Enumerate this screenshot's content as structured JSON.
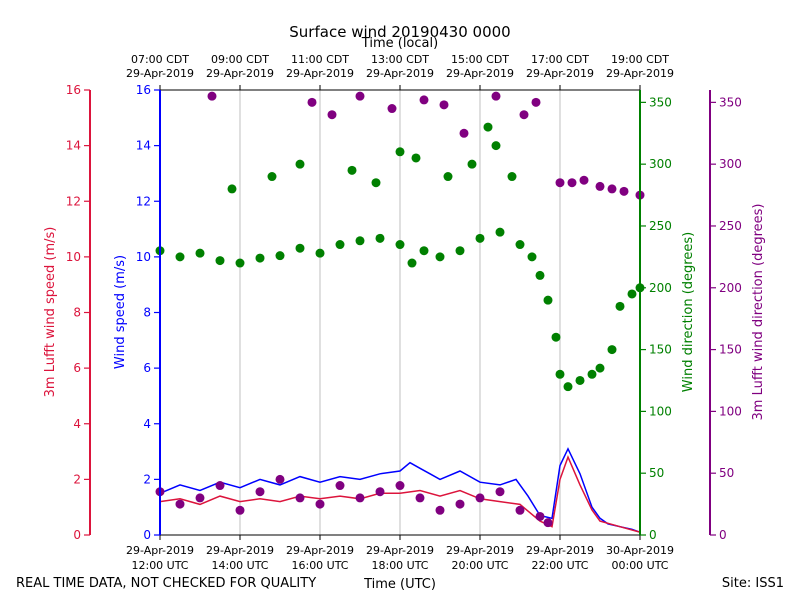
{
  "chart_data": {
    "type": "scatter",
    "title": "Surface wind 20190430 0000",
    "top_axis_label": "Time (local)",
    "xlabel": "Time (UTC)",
    "footer_left": "REAL TIME DATA, NOT CHECKED FOR QUALITY",
    "footer_right": "Site: ISS1",
    "x_range_hours_utc": [
      12.0,
      24.0
    ],
    "ticks_utc": [
      {
        "hour": 12,
        "date": "29-Apr-2019",
        "time": "12:00 UTC"
      },
      {
        "hour": 14,
        "date": "29-Apr-2019",
        "time": "14:00 UTC"
      },
      {
        "hour": 16,
        "date": "29-Apr-2019",
        "time": "16:00 UTC"
      },
      {
        "hour": 18,
        "date": "29-Apr-2019",
        "time": "18:00 UTC"
      },
      {
        "hour": 20,
        "date": "29-Apr-2019",
        "time": "20:00 UTC"
      },
      {
        "hour": 22,
        "date": "29-Apr-2019",
        "time": "22:00 UTC"
      },
      {
        "hour": 24,
        "date": "30-Apr-2019",
        "time": "00:00 UTC"
      }
    ],
    "ticks_local": [
      {
        "hour": 12,
        "time": "07:00 CDT",
        "date": "29-Apr-2019"
      },
      {
        "hour": 14,
        "time": "09:00 CDT",
        "date": "29-Apr-2019"
      },
      {
        "hour": 16,
        "time": "11:00 CDT",
        "date": "29-Apr-2019"
      },
      {
        "hour": 18,
        "time": "13:00 CDT",
        "date": "29-Apr-2019"
      },
      {
        "hour": 20,
        "time": "15:00 CDT",
        "date": "29-Apr-2019"
      },
      {
        "hour": 22,
        "time": "17:00 CDT",
        "date": "29-Apr-2019"
      },
      {
        "hour": 24,
        "time": "19:00 CDT",
        "date": "29-Apr-2019"
      }
    ],
    "axes": {
      "lufft_speed": {
        "label": "3m Lufft wind speed (m/s)",
        "range": [
          0,
          16
        ],
        "ticks": [
          0,
          2,
          4,
          6,
          8,
          10,
          12,
          14,
          16
        ],
        "color": "#dc143c"
      },
      "speed": {
        "label": "Wind speed (m/s)",
        "range": [
          0,
          16
        ],
        "ticks": [
          0,
          2,
          4,
          6,
          8,
          10,
          12,
          14,
          16
        ],
        "color": "#0000ff"
      },
      "direction": {
        "label": "Wind direction (degrees)",
        "range": [
          0,
          360
        ],
        "ticks": [
          0,
          50,
          100,
          150,
          200,
          250,
          300,
          350
        ],
        "color": "#008000"
      },
      "lufft_direction": {
        "label": "3m Lufft wind direction (degrees)",
        "range": [
          0,
          360
        ],
        "ticks": [
          0,
          50,
          100,
          150,
          200,
          250,
          300,
          350
        ],
        "color": "#800080"
      }
    },
    "series": [
      {
        "name": "Wind speed",
        "axis": "speed",
        "style": "line",
        "color": "#0000ff",
        "x": [
          12.0,
          12.5,
          13.0,
          13.5,
          14.0,
          14.5,
          15.0,
          15.5,
          16.0,
          16.5,
          17.0,
          17.5,
          18.0,
          18.25,
          18.5,
          18.75,
          19.0,
          19.5,
          20.0,
          20.5,
          20.9,
          21.2,
          21.5,
          21.8,
          22.0,
          22.2,
          22.5,
          22.8,
          23.0,
          23.2,
          23.5,
          23.8,
          24.0
        ],
        "values": [
          1.5,
          1.8,
          1.6,
          1.9,
          1.7,
          2.0,
          1.8,
          2.1,
          1.9,
          2.1,
          2.0,
          2.2,
          2.3,
          2.6,
          2.4,
          2.2,
          2.0,
          2.3,
          1.9,
          1.8,
          2.0,
          1.4,
          0.7,
          0.6,
          2.5,
          3.1,
          2.2,
          1.0,
          0.6,
          0.4,
          0.3,
          0.2,
          0.1
        ]
      },
      {
        "name": "3m Lufft wind speed",
        "axis": "lufft_speed",
        "style": "line",
        "color": "#dc143c",
        "x": [
          12.0,
          12.5,
          13.0,
          13.5,
          14.0,
          14.5,
          15.0,
          15.5,
          16.0,
          16.5,
          17.0,
          17.5,
          18.0,
          18.5,
          19.0,
          19.5,
          20.0,
          20.5,
          21.0,
          21.5,
          21.8,
          22.0,
          22.2,
          22.5,
          22.8,
          23.0,
          23.5,
          24.0
        ],
        "values": [
          1.2,
          1.3,
          1.1,
          1.4,
          1.2,
          1.3,
          1.2,
          1.4,
          1.3,
          1.4,
          1.3,
          1.5,
          1.5,
          1.6,
          1.4,
          1.6,
          1.3,
          1.2,
          1.1,
          0.5,
          0.3,
          2.0,
          2.8,
          1.8,
          0.9,
          0.5,
          0.3,
          0.1
        ]
      },
      {
        "name": "Wind direction",
        "axis": "direction",
        "style": "scatter",
        "color": "#008000",
        "x": [
          12.0,
          12.5,
          13.0,
          13.5,
          14.0,
          14.5,
          15.0,
          15.5,
          16.0,
          16.5,
          17.0,
          17.5,
          18.0,
          18.3,
          18.6,
          19.0,
          19.5,
          20.0,
          20.5,
          21.0,
          21.3,
          21.5,
          21.7,
          21.9,
          22.0,
          22.2,
          22.5,
          22.8,
          23.0,
          23.3,
          23.5,
          23.8,
          24.0,
          13.8,
          14.8,
          15.5,
          16.8,
          17.4,
          18.0,
          18.4,
          19.2,
          19.8,
          20.2,
          20.4,
          20.8
        ],
        "values": [
          230,
          225,
          228,
          222,
          220,
          224,
          226,
          232,
          228,
          235,
          238,
          240,
          235,
          220,
          230,
          225,
          230,
          240,
          245,
          235,
          225,
          210,
          190,
          160,
          130,
          120,
          125,
          130,
          135,
          150,
          185,
          195,
          200,
          280,
          290,
          300,
          295,
          285,
          310,
          305,
          290,
          300,
          330,
          315,
          290
        ]
      },
      {
        "name": "3m Lufft wind direction",
        "axis": "lufft_direction",
        "style": "scatter",
        "color": "#800080",
        "x": [
          12.0,
          12.5,
          13.0,
          13.5,
          14.0,
          14.5,
          15.0,
          15.5,
          16.0,
          16.5,
          17.0,
          17.5,
          18.0,
          18.5,
          19.0,
          19.5,
          20.0,
          20.5,
          21.0,
          21.5,
          21.7,
          22.0,
          22.3,
          22.6,
          23.0,
          23.3,
          23.6,
          24.0,
          13.3,
          15.8,
          16.3,
          17.0,
          17.8,
          18.6,
          19.1,
          19.6,
          20.4,
          21.1,
          21.4
        ],
        "values": [
          35,
          25,
          30,
          40,
          20,
          35,
          45,
          30,
          25,
          40,
          30,
          35,
          40,
          30,
          20,
          25,
          30,
          35,
          20,
          15,
          10,
          285,
          285,
          287,
          282,
          280,
          278,
          275,
          355,
          350,
          340,
          355,
          345,
          352,
          348,
          325,
          355,
          340,
          350
        ]
      }
    ]
  }
}
